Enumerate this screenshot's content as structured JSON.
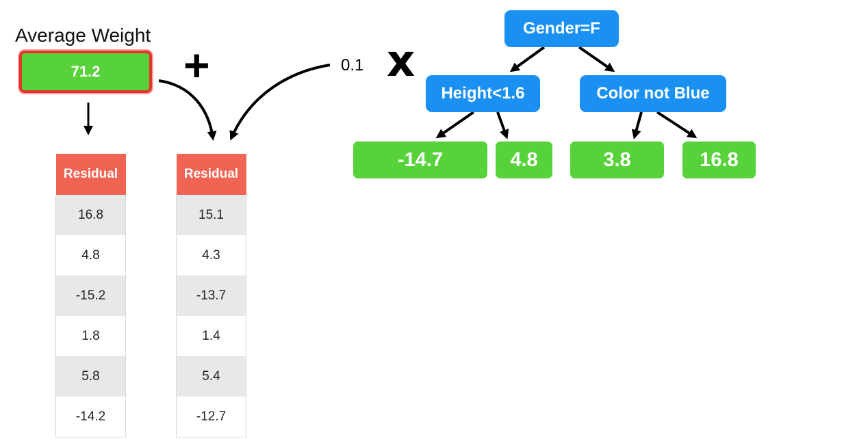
{
  "average": {
    "label": "Average Weight",
    "value": "71.2"
  },
  "operators": {
    "plus": "+",
    "learning_rate": "0.1",
    "times": "x"
  },
  "tables": {
    "left": {
      "header": "Residual",
      "rows": [
        "16.8",
        "4.8",
        "-15.2",
        "1.8",
        "5.8",
        "-14.2"
      ]
    },
    "right": {
      "header": "Residual",
      "rows": [
        "15.1",
        "4.3",
        "-13.7",
        "1.4",
        "5.4",
        "-12.7"
      ]
    }
  },
  "tree": {
    "root": "Gender=F",
    "left_split": "Height<1.6",
    "right_split": "Color not Blue",
    "leaves": [
      "-14.7",
      "4.8",
      "3.8",
      "16.8"
    ]
  },
  "colors": {
    "green": "#57d23a",
    "blue": "#1a91f2",
    "header_red": "#f16352",
    "highlight_red": "#e5342b"
  }
}
